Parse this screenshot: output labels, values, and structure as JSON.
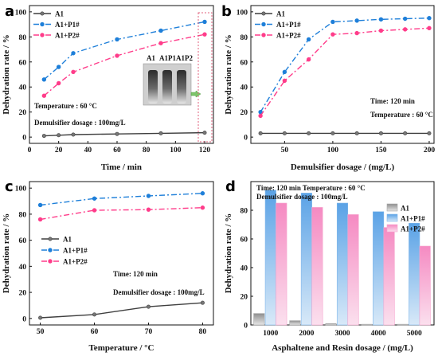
{
  "colors": {
    "A1": "#3f3f3f",
    "A1+P1#": "#1e7fd9",
    "A1+P2#": "#ff3c8a",
    "bar_A1": "#a9a9a9",
    "bar_P1": "#7fb6ea",
    "bar_P2": "#f7a6cf",
    "panel_label": "#b01550"
  },
  "chart_data": [
    {
      "panel": "a",
      "type": "line",
      "xlabel": "Time / min",
      "ylabel": "Dehydration rate / %",
      "xlim": [
        0,
        126
      ],
      "ylim": [
        -5,
        105
      ],
      "xticks": [
        0,
        20,
        40,
        60,
        80,
        100,
        120
      ],
      "yticks": [
        0,
        20,
        40,
        60,
        80,
        100
      ],
      "legend_placement": "top-left",
      "series": [
        {
          "name": "A1",
          "x": [
            10,
            20,
            30,
            60,
            90,
            120
          ],
          "values": [
            1,
            1.5,
            2,
            2.5,
            3,
            3.5
          ]
        },
        {
          "name": "A1+P1#",
          "x": [
            10,
            20,
            30,
            60,
            90,
            120
          ],
          "values": [
            46,
            56,
            67,
            78,
            85,
            92
          ]
        },
        {
          "name": "A1+P2#",
          "x": [
            10,
            20,
            30,
            60,
            90,
            120
          ],
          "values": [
            33,
            43,
            52,
            65,
            75,
            82
          ]
        }
      ],
      "annotations": [
        "Temperature : 60 °C",
        "Demulsifier dosage : 100mg/L"
      ],
      "inset_labels": [
        "A1",
        "A1P1",
        "A1P2"
      ]
    },
    {
      "panel": "b",
      "type": "line",
      "xlabel": "Demulsifier dosage / (mg/L)",
      "ylabel": "Dehydration rate / %",
      "xlim": [
        15,
        205
      ],
      "ylim": [
        -5,
        105
      ],
      "xticks": [
        50,
        100,
        150,
        200
      ],
      "yticks": [
        0,
        20,
        40,
        60,
        80,
        100
      ],
      "legend_placement": "top-left",
      "series": [
        {
          "name": "A1",
          "x": [
            25,
            50,
            75,
            100,
            125,
            150,
            175,
            200
          ],
          "values": [
            3,
            3,
            3,
            3,
            3,
            3,
            3,
            3
          ]
        },
        {
          "name": "A1+P1#",
          "x": [
            25,
            50,
            75,
            100,
            125,
            150,
            175,
            200
          ],
          "values": [
            20,
            52,
            78,
            92,
            93,
            94,
            94.5,
            95
          ]
        },
        {
          "name": "A1+P2#",
          "x": [
            25,
            50,
            75,
            100,
            125,
            150,
            175,
            200
          ],
          "values": [
            17,
            45,
            62,
            82,
            83,
            85,
            86,
            87
          ]
        }
      ],
      "annotations": [
        "Time: 120 min",
        "Temperature : 60 °C"
      ]
    },
    {
      "panel": "c",
      "type": "line",
      "xlabel": "Temperature / °C",
      "ylabel": "Dehydration rate / %",
      "xlim": [
        48,
        82
      ],
      "ylim": [
        -5,
        105
      ],
      "xticks": [
        50,
        60,
        70,
        80
      ],
      "yticks": [
        0,
        20,
        40,
        60,
        80,
        100
      ],
      "legend_placement": "middle-left",
      "series": [
        {
          "name": "A1",
          "x": [
            50,
            60,
            70,
            80
          ],
          "values": [
            0.5,
            3,
            9,
            12
          ]
        },
        {
          "name": "A1+P1#",
          "x": [
            50,
            60,
            70,
            80
          ],
          "values": [
            87,
            92,
            94,
            96
          ]
        },
        {
          "name": "A1+P2#",
          "x": [
            50,
            60,
            70,
            80
          ],
          "values": [
            76,
            83,
            83.5,
            85
          ]
        }
      ],
      "annotations": [
        "Time: 120 min",
        "Demulsifier dosage : 100mg/L"
      ]
    },
    {
      "panel": "d",
      "type": "bar",
      "xlabel": "Asphaltene and Resin dosage / (mg/L)",
      "ylabel": "Dehydration rate / %",
      "ylim": [
        0,
        100
      ],
      "yticks": [
        0,
        20,
        40,
        60,
        80
      ],
      "categories": [
        "1000",
        "2000",
        "3000",
        "4000",
        "5000"
      ],
      "legend_placement": "top-right",
      "series": [
        {
          "name": "A1",
          "values": [
            8,
            3,
            1,
            0.5,
            0.5
          ]
        },
        {
          "name": "A1+P1#",
          "values": [
            94,
            92,
            85,
            79,
            71
          ]
        },
        {
          "name": "A1+P2#",
          "values": [
            85,
            82,
            77,
            68,
            55
          ]
        }
      ],
      "annotations": [
        "Time: 120 min Temperature : 60 °C",
        "Demulsifier dosage : 100mg/L"
      ]
    }
  ],
  "panel_labels": [
    "a",
    "b",
    "c",
    "d"
  ]
}
